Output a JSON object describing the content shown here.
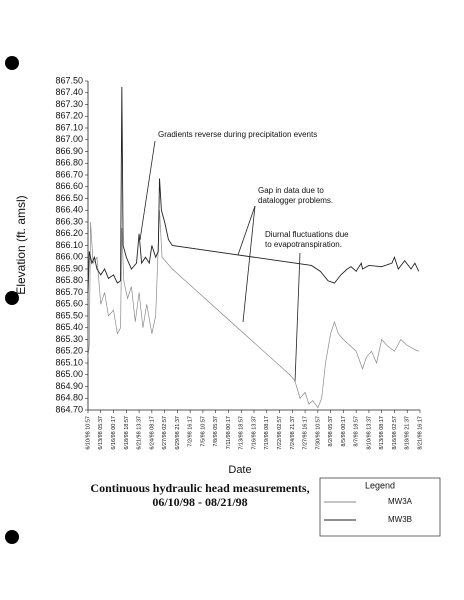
{
  "chart_data": {
    "type": "line",
    "title": "Continuous hydraulic head measurements,",
    "subtitle": "06/10/98 - 08/21/98",
    "x_label": "Date",
    "y_label": "Elevation (ft. amsl)",
    "legend_title": "Legend",
    "annotations": [
      [
        "Gradients reverse during precipitation events"
      ],
      [
        "Gap in data due to",
        "datalogger problems."
      ],
      [
        "Diurnal fluctuations due",
        "to evapotranspiration."
      ]
    ],
    "xlim": [
      0,
      26
    ],
    "xticks": [
      {
        "value": 0,
        "label": "6/10/98 10:57"
      },
      {
        "value": 1,
        "label": "6/13/98 05:37"
      },
      {
        "value": 2,
        "label": "6/16/98 00:17"
      },
      {
        "value": 3,
        "label": "6/18/98 18:57"
      },
      {
        "value": 4,
        "label": "6/21/98 13:37"
      },
      {
        "value": 5,
        "label": "6/24/98 08:17"
      },
      {
        "value": 6,
        "label": "6/27/98 02:57"
      },
      {
        "value": 7,
        "label": "6/29/98 21:37"
      },
      {
        "value": 8,
        "label": "7/2/98 16:17"
      },
      {
        "value": 9,
        "label": "7/5/98 10:57"
      },
      {
        "value": 10,
        "label": "7/8/98 05:37"
      },
      {
        "value": 11,
        "label": "7/11/98 00:17"
      },
      {
        "value": 12,
        "label": "7/13/98 18:57"
      },
      {
        "value": 13,
        "label": "7/16/98 13:37"
      },
      {
        "value": 14,
        "label": "7/19/98 08:17"
      },
      {
        "value": 15,
        "label": "7/22/98 02:57"
      },
      {
        "value": 16,
        "label": "7/24/98 21:37"
      },
      {
        "value": 17,
        "label": "7/27/98 16:17"
      },
      {
        "value": 18,
        "label": "7/30/98 10:57"
      },
      {
        "value": 19,
        "label": "8/2/98 05:37"
      },
      {
        "value": 20,
        "label": "8/5/98 00:17"
      },
      {
        "value": 21,
        "label": "8/7/98 18:57"
      },
      {
        "value": 22,
        "label": "8/10/98 13:37"
      },
      {
        "value": 23,
        "label": "8/13/98 08:17"
      },
      {
        "value": 24,
        "label": "8/16/98 02:57"
      },
      {
        "value": 25,
        "label": "8/18/98 21:37"
      },
      {
        "value": 26,
        "label": "8/21/98 16:17"
      }
    ],
    "ylim": [
      864.7,
      867.5
    ],
    "yticks": [
      {
        "value": 864.7,
        "label": "864.70"
      },
      {
        "value": 864.8,
        "label": "864.80"
      },
      {
        "value": 864.9,
        "label": "864.90"
      },
      {
        "value": 865.0,
        "label": "865.00"
      },
      {
        "value": 865.1,
        "label": "865.10"
      },
      {
        "value": 865.2,
        "label": "865.20"
      },
      {
        "value": 865.3,
        "label": "865.30"
      },
      {
        "value": 865.4,
        "label": "865.40"
      },
      {
        "value": 865.5,
        "label": "865.50"
      },
      {
        "value": 865.6,
        "label": "865.60"
      },
      {
        "value": 865.7,
        "label": "865.70"
      },
      {
        "value": 865.8,
        "label": "865.80"
      },
      {
        "value": 865.9,
        "label": "865.90"
      },
      {
        "value": 866.0,
        "label": "866.00"
      },
      {
        "value": 866.1,
        "label": "866.10"
      },
      {
        "value": 866.2,
        "label": "866.20"
      },
      {
        "value": 866.3,
        "label": "866.30"
      },
      {
        "value": 866.4,
        "label": "866.40"
      },
      {
        "value": 866.5,
        "label": "866.50"
      },
      {
        "value": 866.6,
        "label": "866.60"
      },
      {
        "value": 866.7,
        "label": "866.70"
      },
      {
        "value": 866.8,
        "label": "866.80"
      },
      {
        "value": 866.9,
        "label": "866.90"
      },
      {
        "value": 867.0,
        "label": "867.00"
      },
      {
        "value": 867.1,
        "label": "867.10"
      },
      {
        "value": 867.2,
        "label": "867.20"
      },
      {
        "value": 867.3,
        "label": "867.30"
      },
      {
        "value": 867.4,
        "label": "867.40"
      },
      {
        "value": 867.5,
        "label": "867.50"
      }
    ],
    "series": [
      {
        "name": "MW3A",
        "color": "#8a8a8a",
        "x": [
          0,
          0.1,
          0.2,
          0.4,
          0.7,
          1.0,
          1.3,
          1.6,
          2.0,
          2.3,
          2.55,
          2.65,
          2.8,
          3.1,
          3.4,
          3.7,
          4.0,
          4.3,
          4.6,
          5.0,
          5.3,
          5.6,
          5.8,
          6.2,
          6.6,
          15.8,
          16.2,
          16.6,
          17.0,
          17.3,
          17.6,
          18.0,
          18.3,
          18.6,
          19.0,
          19.3,
          19.6,
          20.0,
          20.5,
          21.0,
          21.5,
          21.8,
          22.2,
          22.6,
          23.0,
          23.4,
          24.0,
          24.5,
          25.0,
          25.5,
          25.9
        ],
        "values": [
          865.15,
          865.25,
          866.3,
          865.95,
          866.0,
          865.6,
          865.7,
          865.5,
          865.55,
          865.35,
          865.4,
          866.25,
          865.8,
          865.65,
          865.75,
          865.45,
          865.7,
          865.4,
          865.6,
          865.35,
          865.5,
          866.4,
          866.0,
          865.95,
          865.9,
          865.0,
          864.95,
          864.8,
          864.85,
          864.75,
          864.78,
          864.72,
          864.8,
          865.1,
          865.35,
          865.45,
          865.35,
          865.3,
          865.25,
          865.2,
          865.05,
          865.15,
          865.2,
          865.1,
          865.3,
          865.25,
          865.2,
          865.3,
          865.25,
          865.22,
          865.2
        ]
      },
      {
        "name": "MW3B",
        "color": "#222222",
        "x": [
          0,
          0.1,
          0.3,
          0.5,
          0.7,
          1.0,
          1.3,
          1.6,
          2.0,
          2.3,
          2.55,
          2.65,
          2.75,
          3.0,
          3.4,
          3.8,
          4.0,
          4.2,
          4.5,
          4.8,
          5.0,
          5.3,
          5.5,
          5.6,
          5.75,
          6.0,
          6.3,
          6.6,
          17.5,
          18.2,
          18.8,
          19.3,
          19.8,
          20.3,
          20.6,
          21.0,
          21.4,
          21.5,
          22.0,
          23.0,
          23.8,
          24.0,
          24.3,
          24.8,
          25.3,
          25.6,
          25.9
        ],
        "values": [
          865.7,
          866.05,
          865.95,
          866.0,
          865.9,
          865.85,
          865.9,
          865.82,
          865.85,
          865.78,
          865.8,
          867.45,
          866.1,
          866.0,
          865.9,
          865.95,
          866.2,
          865.95,
          866.0,
          865.95,
          866.1,
          866.0,
          866.05,
          866.67,
          866.4,
          866.3,
          866.15,
          866.1,
          865.93,
          865.88,
          865.8,
          865.78,
          865.85,
          865.9,
          865.92,
          865.88,
          865.95,
          865.9,
          865.93,
          865.92,
          865.95,
          866.0,
          865.9,
          865.97,
          865.9,
          865.95,
          865.88
        ]
      }
    ]
  }
}
